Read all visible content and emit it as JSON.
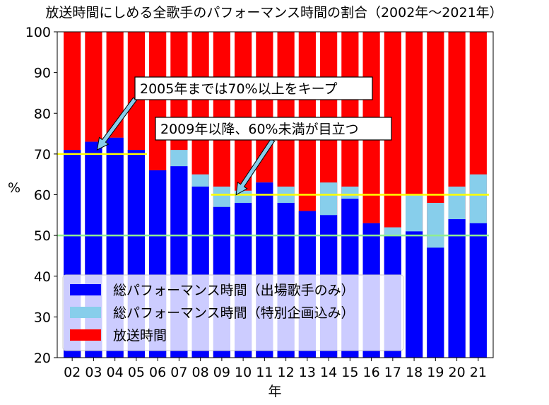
{
  "chart_data": {
    "type": "bar",
    "title": "放送時間にしめる全歌手のパフォーマンス時間の割合（2002年〜2021年）",
    "xlabel": "年",
    "ylabel": "%",
    "ylim": [
      20,
      100
    ],
    "yticks": [
      20,
      30,
      40,
      50,
      60,
      70,
      80,
      90,
      100
    ],
    "categories": [
      "02",
      "03",
      "04",
      "05",
      "06",
      "07",
      "08",
      "09",
      "10",
      "11",
      "12",
      "13",
      "14",
      "15",
      "16",
      "17",
      "18",
      "19",
      "20",
      "21"
    ],
    "series": [
      {
        "name": "総パフォーマンス時間（出場歌手のみ）",
        "color": "#0000ff",
        "values": [
          71,
          73,
          74,
          71,
          66,
          67,
          62,
          57,
          58,
          63,
          58,
          56,
          55,
          59,
          53,
          50,
          51,
          47,
          54,
          53
        ]
      },
      {
        "name": "総パフォーマンス時間（特別企画込み）",
        "color": "#87ceeb",
        "values": [
          71,
          73,
          74,
          71,
          66,
          71,
          65,
          62,
          61,
          63,
          62,
          56,
          63,
          62,
          53,
          52,
          60,
          58,
          62,
          65
        ]
      },
      {
        "name": "放送時間",
        "color": "#ff0000",
        "values": [
          100,
          100,
          100,
          100,
          100,
          100,
          100,
          100,
          100,
          100,
          100,
          100,
          100,
          100,
          100,
          100,
          100,
          100,
          100,
          100
        ]
      }
    ],
    "reference_lines": [
      {
        "value": 50,
        "color": "#90ee90",
        "from": "02",
        "to": "21"
      },
      {
        "value": 70,
        "color": "#ffff00",
        "from": "02",
        "to": "05"
      },
      {
        "value": 60,
        "color": "#ffff00",
        "from": "09",
        "to": "21"
      }
    ],
    "annotations": [
      {
        "text": "2005年までは70%以上をキープ",
        "target_category": "03",
        "target_value": 71
      },
      {
        "text": "2009年以降、60%未満が目立つ",
        "target_category": "10",
        "target_value": 61
      }
    ],
    "legend_position": "lower-left",
    "grid": false
  }
}
